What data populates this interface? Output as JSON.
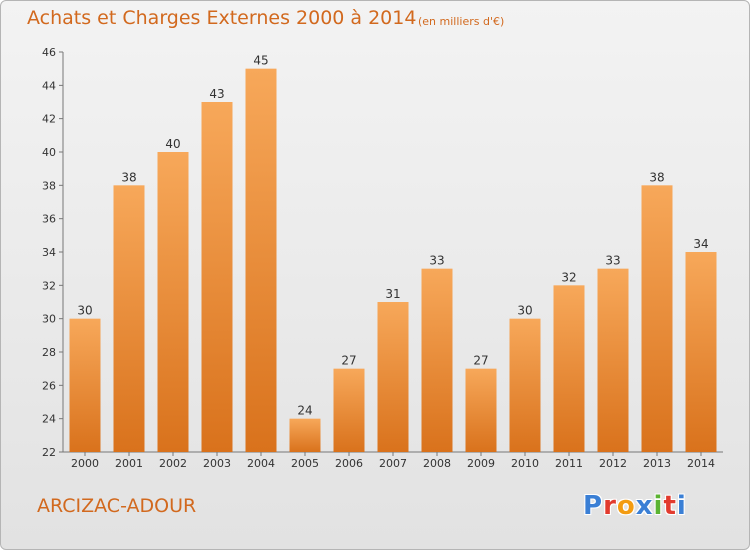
{
  "header": {
    "title": "Achats et Charges Externes 2000 à 2014",
    "subtitle": "(en milliers d'€)"
  },
  "footer": {
    "commune": "ARCIZAC-ADOUR",
    "logo_letters": [
      "P",
      "r",
      "o",
      "x",
      "i",
      "t",
      "i"
    ]
  },
  "colors": {
    "bar_top": "#f7a85a",
    "bar_bottom": "#d9721c",
    "title": "#d2691e",
    "logo": [
      "#3a7fd5",
      "#e23b2e",
      "#f39c12",
      "#3a7fd5",
      "#5bb332",
      "#e23b2e",
      "#3a7fd5"
    ]
  },
  "chart_data": {
    "type": "bar",
    "title": "Achats et Charges Externes 2000 à 2014",
    "subtitle": "(en milliers d'€)",
    "xlabel": "",
    "ylabel": "",
    "categories": [
      "2000",
      "2001",
      "2002",
      "2003",
      "2004",
      "2005",
      "2006",
      "2007",
      "2008",
      "2009",
      "2010",
      "2011",
      "2012",
      "2013",
      "2014"
    ],
    "values": [
      30,
      38,
      40,
      43,
      45,
      24,
      27,
      31,
      33,
      27,
      30,
      32,
      33,
      38,
      34
    ],
    "ylim": [
      22,
      46
    ],
    "yticks": [
      22,
      24,
      26,
      28,
      30,
      32,
      34,
      36,
      38,
      40,
      42,
      44,
      46
    ],
    "grid": false,
    "data_labels": true
  }
}
